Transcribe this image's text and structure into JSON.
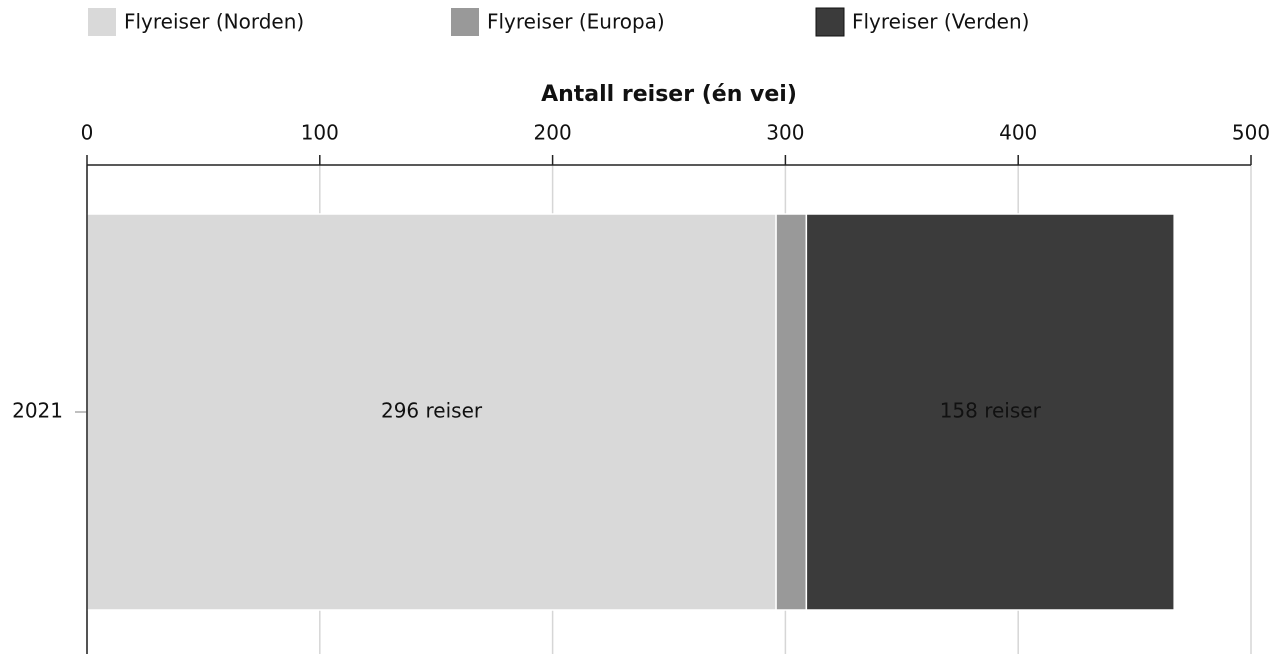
{
  "chart_data": {
    "type": "stacked-barh",
    "xlabel": "Antall reiser (én vei)",
    "categories": [
      "2021"
    ],
    "series": [
      {
        "name": "Flyreiser (Norden)",
        "color": "#d9d9d9",
        "values": [
          296
        ],
        "value_labels": [
          "296 reiser"
        ]
      },
      {
        "name": "Flyreiser (Europa)",
        "color": "#999999",
        "values": [
          13
        ],
        "value_labels": [
          null
        ]
      },
      {
        "name": "Flyreiser (Verden)",
        "color": "#3b3b3b",
        "values": [
          158
        ],
        "value_labels": [
          "158 reiser"
        ]
      }
    ],
    "xlim": [
      0,
      500
    ],
    "xticks": [
      0,
      100,
      200,
      300,
      400,
      500
    ],
    "grid": true,
    "legend": "top"
  }
}
